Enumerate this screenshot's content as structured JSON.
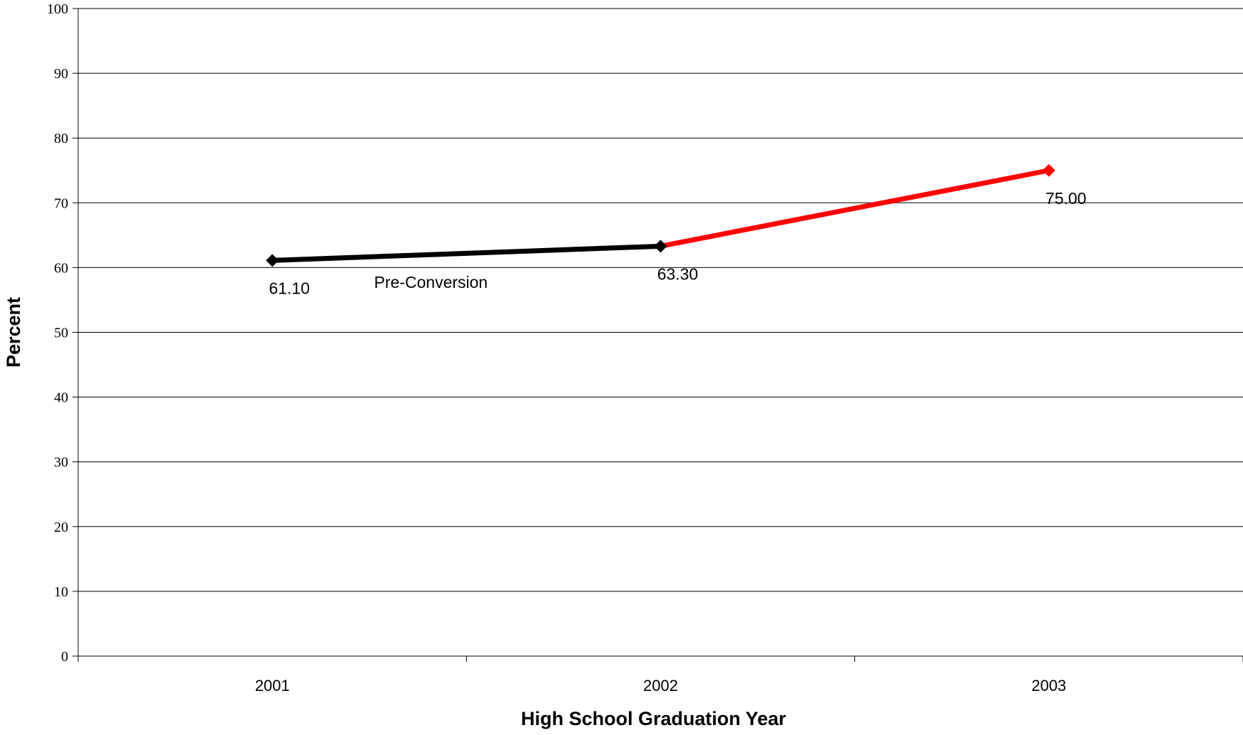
{
  "chart_data": {
    "type": "line",
    "title": "",
    "xlabel": "High School Graduation Year",
    "ylabel": "Percent",
    "categories": [
      "2001",
      "2002",
      "2003"
    ],
    "ylim": [
      0,
      100
    ],
    "yticks": [
      "0",
      "10",
      "20",
      "30",
      "40",
      "50",
      "60",
      "70",
      "80",
      "90",
      "100"
    ],
    "grid": true,
    "legend": "none",
    "values": [
      61.1,
      63.3,
      75.0
    ],
    "data_labels": [
      "61.10",
      "63.30",
      "75.00"
    ],
    "segments": [
      {
        "from": 0,
        "to": 1,
        "color": "#000000"
      },
      {
        "from": 1,
        "to": 2,
        "color": "#ff0000"
      }
    ],
    "marker_colors": [
      "#000000",
      "#000000",
      "#ff0000"
    ],
    "annotations": [
      {
        "text": "Pre-Conversion",
        "between": [
          0,
          1
        ],
        "y": 57.5
      }
    ]
  }
}
